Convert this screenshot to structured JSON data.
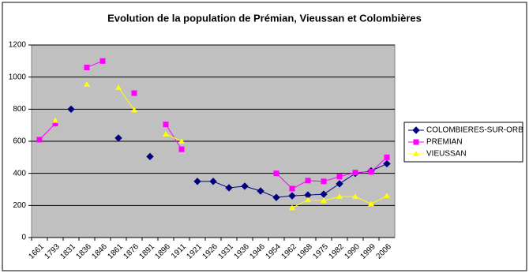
{
  "chart_data": {
    "type": "line",
    "title": "Evolution de la population de Prémian, Vieussan et Colombières",
    "categories": [
      "1661",
      "1793",
      "1831",
      "1836",
      "1846",
      "1861",
      "1876",
      "1891",
      "1896",
      "1911",
      "1921",
      "1926",
      "1931",
      "1936",
      "1946",
      "1954",
      "1962",
      "1968",
      "1975",
      "1982",
      "1990",
      "1999",
      "2006"
    ],
    "series": [
      {
        "name": "COLOMBIERES-SUR-ORB",
        "color": "#000080",
        "marker": "diamond",
        "values": [
          null,
          null,
          800,
          null,
          null,
          620,
          null,
          505,
          null,
          null,
          350,
          350,
          310,
          320,
          290,
          250,
          260,
          265,
          270,
          335,
          400,
          415,
          460
        ]
      },
      {
        "name": "PREMIAN",
        "color": "#ff00ff",
        "marker": "square",
        "values": [
          610,
          710,
          null,
          1060,
          1100,
          null,
          900,
          null,
          705,
          550,
          null,
          null,
          null,
          null,
          null,
          400,
          305,
          355,
          350,
          380,
          405,
          410,
          500
        ]
      },
      {
        "name": "VIEUSSAN",
        "color": "#ffff00",
        "marker": "triangle",
        "values": [
          null,
          730,
          null,
          955,
          null,
          935,
          795,
          null,
          645,
          600,
          null,
          null,
          null,
          null,
          null,
          null,
          185,
          235,
          230,
          255,
          255,
          210,
          260
        ]
      }
    ],
    "ylim": [
      0,
      1200
    ],
    "yticks": [
      0,
      200,
      400,
      600,
      800,
      1000,
      1200
    ],
    "grid": true,
    "legend": "right"
  }
}
